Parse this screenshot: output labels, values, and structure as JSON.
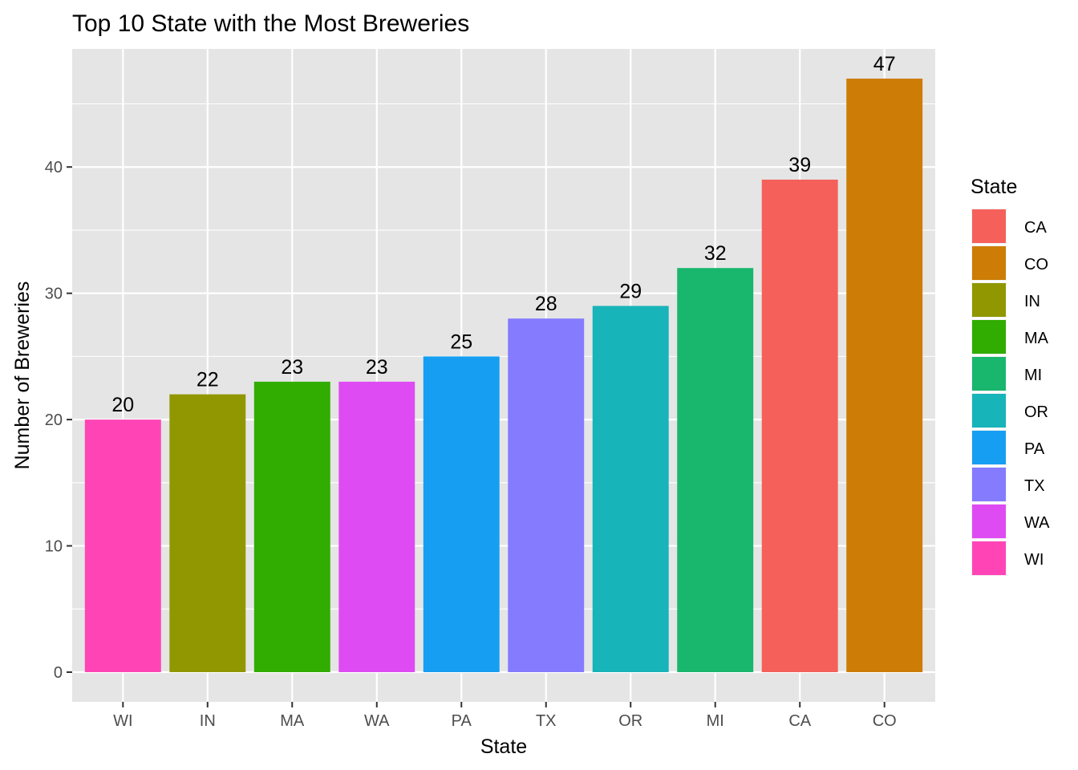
{
  "chart_data": {
    "type": "bar",
    "title": "Top 10 State with the Most Breweries",
    "xlabel": "State",
    "ylabel": "Number of Breweries",
    "categories": [
      "WI",
      "IN",
      "MA",
      "WA",
      "PA",
      "TX",
      "OR",
      "MI",
      "CA",
      "CO"
    ],
    "values": [
      20,
      22,
      23,
      23,
      25,
      28,
      29,
      32,
      39,
      47
    ],
    "bar_colors": [
      "#FF45B5",
      "#919700",
      "#31AC00",
      "#DF4BF3",
      "#169EF2",
      "#857BFF",
      "#17B4B9",
      "#19B66E",
      "#F5605B",
      "#CD7D05"
    ],
    "data_labels": [
      "20",
      "22",
      "23",
      "23",
      "25",
      "28",
      "29",
      "32",
      "39",
      "47"
    ],
    "ylim": [
      -2.35,
      49.35
    ],
    "yticks": [
      0,
      10,
      20,
      30,
      40
    ],
    "ytick_labels": [
      "0",
      "10",
      "20",
      "30",
      "40"
    ],
    "grid": true,
    "panel_background": "#E5E5E5",
    "grid_color": "#FFFFFF",
    "legend": {
      "title": "State",
      "placement": "right",
      "entries": [
        "CA",
        "CO",
        "IN",
        "MA",
        "MI",
        "OR",
        "PA",
        "TX",
        "WA",
        "WI"
      ],
      "colors": [
        "#F5605B",
        "#CD7D05",
        "#919700",
        "#31AC00",
        "#19B66E",
        "#17B4B9",
        "#169EF2",
        "#857BFF",
        "#DF4BF3",
        "#FF45B5"
      ]
    }
  }
}
